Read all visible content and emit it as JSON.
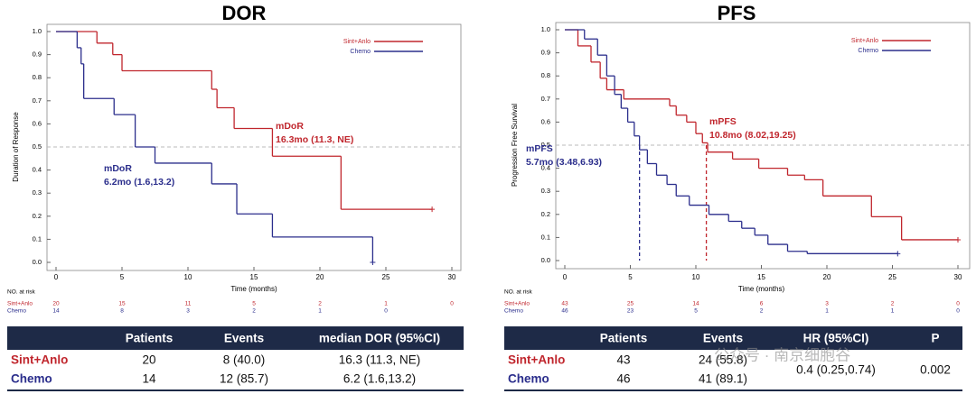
{
  "chart_data": [
    {
      "type": "step",
      "title": "DOR",
      "y_label": "Duration of Response",
      "x_label": "Time (months)",
      "xlim": [
        0,
        30
      ],
      "xticks": [
        0,
        5,
        10,
        15,
        20,
        25,
        30
      ],
      "ylim": [
        0,
        1
      ],
      "yticks": [
        {
          "value": 0,
          "label": "0.0"
        },
        0.1,
        0.2,
        0.3,
        0.4,
        0.5,
        0.6,
        0.7,
        0.8,
        0.9,
        {
          "value": 1,
          "label": "1.0"
        }
      ],
      "reference_y": 0.5,
      "series": [
        {
          "name": "Sint+Anlo",
          "color": "#c0262d",
          "x": [
            0,
            3.1,
            4.3,
            5.0,
            11.8,
            12.2,
            13.5,
            16.4,
            21.6,
            28.5
          ],
          "values": [
            1.0,
            0.95,
            0.9,
            0.83,
            0.75,
            0.67,
            0.58,
            0.46,
            0.23,
            0.23
          ]
        },
        {
          "name": "Chemo",
          "color": "#2b2e8c",
          "x": [
            0,
            1.6,
            1.9,
            2.1,
            4.4,
            6.0,
            7.5,
            11.8,
            13.7,
            16.4,
            24.0
          ],
          "values": [
            1.0,
            0.93,
            0.86,
            0.71,
            0.64,
            0.5,
            0.43,
            0.34,
            0.21,
            0.11,
            0.0
          ]
        }
      ],
      "annotations": [
        [
          "mDoR",
          "16.3mo (11.3, NE)"
        ],
        [
          "mDoR",
          "6.2mo (1.6,13.2)"
        ]
      ],
      "risk_table": {
        "title": "NO. at risk",
        "rows": [
          [
            20,
            15,
            11,
            5,
            2,
            1,
            0
          ],
          [
            14,
            8,
            3,
            2,
            1,
            0
          ]
        ]
      },
      "summary": {
        "columns": [
          "Patients",
          "Events",
          "median DOR (95%CI)"
        ],
        "rows": [
          [
            "20",
            "8 (40.0)",
            "16.3 (11.3, NE)"
          ],
          [
            "14",
            "12 (85.7)",
            "6.2 (1.6,13.2)"
          ]
        ]
      }
    },
    {
      "type": "step",
      "title": "PFS",
      "y_label": "Progression Free Survival",
      "x_label": "Time (months)",
      "xlim": [
        0,
        30
      ],
      "xticks": [
        0,
        5,
        10,
        15,
        20,
        25,
        30
      ],
      "ylim": [
        0,
        1
      ],
      "yticks": [
        {
          "value": 0,
          "label": "0.0"
        },
        0.1,
        0.2,
        0.3,
        0.4,
        0.5,
        0.6,
        0.7,
        0.8,
        0.9,
        {
          "value": 1,
          "label": "1.0"
        }
      ],
      "reference_y": 0.5,
      "median_x": [
        10.8,
        5.7
      ],
      "series": [
        {
          "name": "Sint+Anlo",
          "color": "#c0262d",
          "x": [
            0,
            1.0,
            2.0,
            2.7,
            3.2,
            4.5,
            8.0,
            8.5,
            9.3,
            10.0,
            10.5,
            10.9,
            12.8,
            14.8,
            17.0,
            18.3,
            19.7,
            23.4,
            25.7,
            30.0
          ],
          "values": [
            1.0,
            0.93,
            0.86,
            0.79,
            0.74,
            0.7,
            0.67,
            0.63,
            0.6,
            0.55,
            0.51,
            0.47,
            0.44,
            0.4,
            0.37,
            0.35,
            0.28,
            0.19,
            0.09,
            0.09
          ]
        },
        {
          "name": "Chemo",
          "color": "#2b2e8c",
          "x": [
            0,
            1.5,
            2.5,
            3.2,
            3.8,
            4.3,
            4.8,
            5.3,
            5.7,
            6.3,
            7.0,
            7.8,
            8.5,
            9.5,
            11.0,
            12.5,
            13.5,
            14.5,
            15.5,
            17.0,
            18.5,
            25.4
          ],
          "values": [
            1.0,
            0.96,
            0.89,
            0.8,
            0.72,
            0.66,
            0.6,
            0.54,
            0.48,
            0.42,
            0.37,
            0.33,
            0.28,
            0.24,
            0.2,
            0.17,
            0.14,
            0.11,
            0.07,
            0.04,
            0.03,
            0.03
          ]
        }
      ],
      "annotations": [
        [
          "mPFS",
          "10.8mo (8.02,19.25)"
        ],
        [
          "mPFS",
          "5.7mo (3.48,6.93)"
        ]
      ],
      "risk_table": {
        "title": "NO. at risk",
        "rows": [
          [
            43,
            25,
            14,
            6,
            3,
            2,
            0
          ],
          [
            46,
            23,
            5,
            2,
            1,
            1,
            0
          ]
        ]
      },
      "summary": {
        "columns": [
          "Patients",
          "Events",
          "HR (95%CI)",
          "P"
        ],
        "rows": [
          [
            "43",
            "24 (55.8)"
          ],
          [
            "46",
            "41 (89.1)"
          ]
        ],
        "shared": [
          "0.4 (0.25,0.74)",
          "0.002"
        ]
      }
    }
  ],
  "watermark": "公众号 · 南京细胞谷"
}
